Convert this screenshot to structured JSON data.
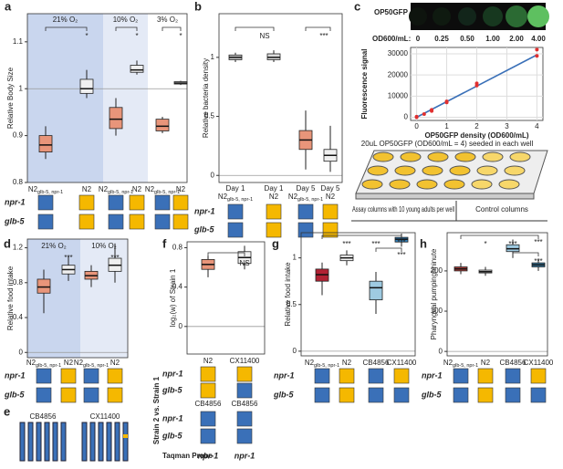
{
  "chart_data": [
    {
      "type": "box",
      "letter": "a",
      "ylabel": "Relative Body Size",
      "ylim": [
        0.8,
        1.16
      ],
      "yticks": [
        0.8,
        0.9,
        1.0,
        1.1
      ],
      "refline": 1.0,
      "groups": [
        {
          "label": "21% O₂",
          "color": "#c9d6ee"
        },
        {
          "label": "10% O₂",
          "color": "#e4eaf6"
        },
        {
          "label": "3% O₂",
          "color": "#ffffff"
        }
      ],
      "categories": [
        {
          "label": "N2",
          "sub": "glb-5, npr-1"
        },
        {
          "label": "N2"
        },
        {
          "label": "N2",
          "sub": "glb-5, npr-1"
        },
        {
          "label": "N2"
        },
        {
          "label": "N2",
          "sub": "glb-5, npr-1"
        },
        {
          "label": "N2"
        }
      ],
      "boxes": [
        {
          "min": 0.85,
          "q1": 0.865,
          "median": 0.88,
          "q3": 0.9,
          "max": 0.92,
          "color": "#e8957a"
        },
        {
          "min": 0.98,
          "q1": 0.99,
          "median": 1.0,
          "q3": 1.02,
          "max": 1.04,
          "color": "#f0f0f0"
        },
        {
          "min": 0.9,
          "q1": 0.915,
          "median": 0.935,
          "q3": 0.96,
          "max": 0.98,
          "color": "#e8957a"
        },
        {
          "min": 1.03,
          "q1": 1.035,
          "median": 1.04,
          "q3": 1.05,
          "max": 1.06,
          "color": "#f0f0f0"
        },
        {
          "min": 0.905,
          "q1": 0.91,
          "median": 0.92,
          "q3": 0.935,
          "max": 0.94,
          "color": "#e8957a"
        },
        {
          "min": 1.008,
          "q1": 1.01,
          "median": 1.012,
          "q3": 1.015,
          "max": 1.017,
          "color": "#f0f0f0"
        }
      ],
      "annotations": [
        {
          "text": "*"
        },
        {
          "text": "*"
        },
        {
          "text": "*"
        }
      ],
      "genotype": [
        {
          "gene": "npr-1",
          "colors": [
            "#3a70b8",
            "#f5b800",
            "#3a70b8",
            "#f5b800",
            "#3a70b8",
            "#f5b800"
          ]
        },
        {
          "gene": "glb-5",
          "colors": [
            "#3a70b8",
            "#f5b800",
            "#3a70b8",
            "#f5b800",
            "#3a70b8",
            "#f5b800"
          ]
        }
      ]
    },
    {
      "type": "box",
      "letter": "b",
      "ylabel": "Relative bacteria density",
      "ylim": [
        -0.06,
        1.37
      ],
      "yticks": [
        0.0,
        0.5,
        1.0
      ],
      "refline": 0.0,
      "categories": [
        {
          "day": "Day 1",
          "label": "N2",
          "sub": "glb-5, npr-1"
        },
        {
          "day": "Day 1",
          "label": "N2"
        },
        {
          "day": "Day 5",
          "label": "N2",
          "sub": "glb-5, npr-1"
        },
        {
          "day": "Day 5",
          "label": "N2"
        }
      ],
      "boxes": [
        {
          "min": 0.96,
          "q1": 0.98,
          "median": 1.0,
          "q3": 1.02,
          "max": 1.04,
          "color": "#c8c8c8"
        },
        {
          "min": 0.96,
          "q1": 0.98,
          "median": 1.0,
          "q3": 1.03,
          "max": 1.06,
          "color": "#dcdcdc"
        },
        {
          "min": 0.05,
          "q1": 0.22,
          "median": 0.3,
          "q3": 0.38,
          "max": 0.55,
          "color": "#e8957a"
        },
        {
          "min": 0.03,
          "q1": 0.12,
          "median": 0.17,
          "q3": 0.22,
          "max": 0.42,
          "color": "#f0f0f0"
        }
      ],
      "annotations": [
        {
          "text": "NS"
        },
        {
          "text": "***"
        }
      ],
      "genotype": [
        {
          "gene": "npr-1",
          "colors": [
            "#3a70b8",
            "#f5b800",
            "#3a70b8",
            "#f5b800"
          ]
        },
        {
          "gene": "glb-5",
          "colors": [
            "#3a70b8",
            "#f5b800",
            "#3a70b8",
            "#f5b800"
          ]
        }
      ]
    },
    {
      "type": "scatter",
      "letter": "c",
      "strip_label": "OP50GFP",
      "od_label": "OD600/mL:",
      "od_values": [
        "0",
        "0.25",
        "0.50",
        "1.00",
        "2.00",
        "4.00"
      ],
      "ylabel": "Fluorescence signal",
      "xlabel": "OP50GFP density (OD600/mL)",
      "xlim": [
        -0.2,
        4.2
      ],
      "xticks": [
        0,
        1,
        2,
        3,
        4
      ],
      "ylim": [
        -1500,
        33000
      ],
      "yticks": [
        0,
        10000,
        20000,
        30000
      ],
      "grid": true,
      "x": [
        0,
        0,
        0.25,
        0.5,
        0.5,
        1,
        1,
        2,
        2,
        4,
        4
      ],
      "y": [
        0,
        300,
        1500,
        3500,
        3000,
        7000,
        7500,
        15000,
        16000,
        29000,
        32000
      ],
      "color": "#e03030",
      "fit": {
        "x": [
          0,
          4
        ],
        "y": [
          0,
          29500
        ],
        "color": "#3a70b8"
      },
      "caption": "20uL OP50GFP (OD600/mL = 4) seeded in each well",
      "assay_label": "Assay columns with 10 young adults per well",
      "control_label": "Control columns"
    },
    {
      "type": "box",
      "letter": "d",
      "ylabel": "Relative food intake",
      "ylim": [
        -0.06,
        1.3
      ],
      "yticks": [
        0.0,
        0.4,
        0.8,
        1.2
      ],
      "refline": 0.0,
      "groups": [
        {
          "label": "21% O₂",
          "color": "#c9d6ee"
        },
        {
          "label": "10% O₂",
          "color": "#e4eaf6"
        }
      ],
      "categories": [
        {
          "label": "N2",
          "sub": "glb-5, npr-1"
        },
        {
          "label": "N2"
        },
        {
          "label": "N2",
          "sub": "glb-5, npr-1"
        },
        {
          "label": "N2"
        }
      ],
      "boxes": [
        {
          "min": 0.45,
          "q1": 0.68,
          "median": 0.75,
          "q3": 0.84,
          "max": 0.95,
          "color": "#e8957a"
        },
        {
          "min": 0.82,
          "q1": 0.9,
          "median": 0.95,
          "q3": 1.0,
          "max": 1.1,
          "color": "#f0f0f0"
        },
        {
          "min": 0.75,
          "q1": 0.84,
          "median": 0.88,
          "q3": 0.93,
          "max": 1.0,
          "color": "#e8957a"
        },
        {
          "min": 0.8,
          "q1": 0.93,
          "median": 1.0,
          "q3": 1.08,
          "max": 1.25,
          "color": "#f0f0f0"
        }
      ],
      "annotations": [
        {
          "text": "***"
        },
        {
          "text": "***"
        }
      ],
      "genotype": [
        {
          "gene": "npr-1",
          "colors": [
            "#3a70b8",
            "#f5b800",
            "#3a70b8",
            "#f5b800"
          ]
        },
        {
          "gene": "glb-5",
          "colors": [
            "#3a70b8",
            "#f5b800",
            "#3a70b8",
            "#f5b800"
          ]
        }
      ]
    },
    {
      "type": "box",
      "letter": "f",
      "ylabel": "log₂(w) of Strain 1",
      "ylim": [
        -0.28,
        0.86
      ],
      "yticks": [
        0.0,
        0.4,
        0.8
      ],
      "refline": 0.0,
      "categories": [
        {
          "label": "N2"
        },
        {
          "label": "CX11400"
        }
      ],
      "boxes": [
        {
          "min": 0.5,
          "q1": 0.58,
          "median": 0.63,
          "q3": 0.68,
          "max": 0.72,
          "color": "#e8957a"
        },
        {
          "min": 0.58,
          "q1": 0.64,
          "median": 0.7,
          "q3": 0.76,
          "max": 0.82,
          "color": "#f0f0f0"
        }
      ],
      "annotations": [
        {
          "text": "NS"
        }
      ],
      "genotype": [
        {
          "gene": "npr-1",
          "colors": [
            "#f5b800",
            "#f5b800"
          ]
        },
        {
          "gene": "glb-5",
          "colors": [
            "#f5b800",
            "#3a70b8"
          ]
        }
      ],
      "strain2": {
        "label": "Strain 2 vs. Strain 1",
        "names": [
          "CB4856",
          "CB4856"
        ],
        "genotype": [
          {
            "gene": "npr-1",
            "colors": [
              "#3a70b8",
              "#3a70b8"
            ]
          },
          {
            "gene": "glb-5",
            "colors": [
              "#3a70b8",
              "#3a70b8"
            ]
          }
        ]
      },
      "probe": {
        "label": "Taqman Probe",
        "values": [
          "npr-1",
          "npr-1"
        ]
      }
    },
    {
      "type": "box",
      "letter": "g",
      "ylabel": "Relative food intake",
      "ylim": [
        -0.05,
        1.27
      ],
      "yticks": [
        0.0,
        0.5,
        1.0
      ],
      "refline": 0.0,
      "categories": [
        {
          "label": "N2",
          "sub": "glb-5, npr-1"
        },
        {
          "label": "N2"
        },
        {
          "label": "CB4856"
        },
        {
          "label": "CX11400"
        }
      ],
      "boxes": [
        {
          "min": 0.6,
          "q1": 0.75,
          "median": 0.82,
          "q3": 0.88,
          "max": 0.95,
          "color": "#b22234"
        },
        {
          "min": 0.92,
          "q1": 0.97,
          "median": 1.0,
          "q3": 1.03,
          "max": 1.08,
          "color": "#f0f0f0"
        },
        {
          "min": 0.4,
          "q1": 0.55,
          "median": 0.68,
          "q3": 0.75,
          "max": 0.85,
          "color": "#9ecae1"
        },
        {
          "min": 1.12,
          "q1": 1.17,
          "median": 1.2,
          "q3": 1.22,
          "max": 1.26,
          "color": "#3182bd"
        }
      ],
      "annotations": [
        {
          "text": "***"
        },
        {
          "text": "***"
        },
        {
          "text": "***"
        },
        {
          "text": "***"
        }
      ],
      "genotype": [
        {
          "gene": "npr-1",
          "colors": [
            "#3a70b8",
            "#f5b800",
            "#3a70b8",
            "#f5b800"
          ]
        },
        {
          "gene": "glb-5",
          "colors": [
            "#3a70b8",
            "#f5b800",
            "#3a70b8",
            "#3a70b8"
          ]
        }
      ]
    },
    {
      "type": "box",
      "letter": "h",
      "ylabel": "Pharyngeal pumping/minute",
      "ylim": [
        -11,
        295
      ],
      "yticks": [
        0,
        100,
        200
      ],
      "refline": 0,
      "categories": [
        {
          "label": "N2",
          "sub": "glb-5, npr-1"
        },
        {
          "label": "N2"
        },
        {
          "label": "CB4856"
        },
        {
          "label": "CX11400"
        }
      ],
      "boxes": [
        {
          "min": 192,
          "q1": 200,
          "median": 205,
          "q3": 210,
          "max": 220,
          "color": "#b0413e"
        },
        {
          "min": 188,
          "q1": 195,
          "median": 198,
          "q3": 202,
          "max": 210,
          "color": "#dddddd"
        },
        {
          "min": 232,
          "q1": 248,
          "median": 255,
          "q3": 265,
          "max": 278,
          "color": "#9ecae1"
        },
        {
          "min": 200,
          "q1": 210,
          "median": 215,
          "q3": 220,
          "max": 230,
          "color": "#3a7fa8"
        }
      ],
      "annotations": [
        {
          "text": "*"
        },
        {
          "text": "***"
        },
        {
          "text": "***"
        },
        {
          "text": "***"
        }
      ],
      "genotype": [
        {
          "gene": "npr-1",
          "colors": [
            "#3a70b8",
            "#f5b800",
            "#3a70b8",
            "#f5b800"
          ]
        },
        {
          "gene": "glb-5",
          "colors": [
            "#3a70b8",
            "#f5b800",
            "#3a70b8",
            "#3a70b8"
          ]
        }
      ]
    }
  ],
  "panel_e": {
    "letter": "e",
    "strains": [
      "CB4856",
      "CX11400"
    ]
  }
}
